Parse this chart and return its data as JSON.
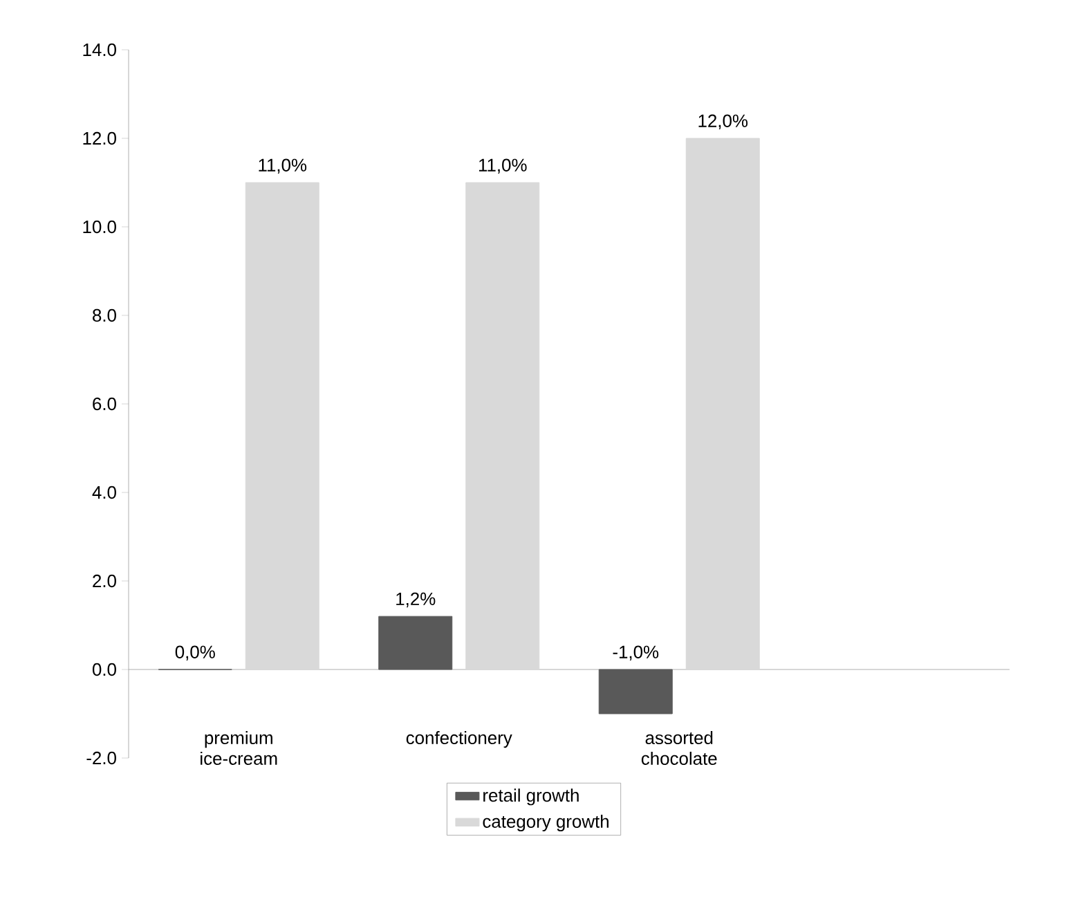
{
  "chart_data": {
    "type": "bar",
    "categories": [
      "premium ice-cream",
      "confectionery",
      "assorted chocolate",
      null
    ],
    "series": [
      {
        "name": "retail growth",
        "color": "#595959",
        "values": [
          0.0,
          1.2,
          -1.0,
          null
        ],
        "value_labels": [
          "0,0%",
          "1,2%",
          "-1,0%",
          null
        ]
      },
      {
        "name": "category growth",
        "color": "#d9d9d9",
        "values": [
          11.0,
          11.0,
          12.0,
          null
        ],
        "value_labels": [
          "11,0%",
          "11,0%",
          "12,0%",
          null
        ]
      }
    ],
    "ylim": [
      -2,
      14
    ],
    "yticks": [
      {
        "value": -2,
        "label": "-2.0"
      },
      {
        "value": 0,
        "label": "0.0"
      },
      {
        "value": 2,
        "label": "2.0"
      },
      {
        "value": 4,
        "label": "4.0"
      },
      {
        "value": 6,
        "label": "6.0"
      },
      {
        "value": 8,
        "label": "8.0"
      },
      {
        "value": 10,
        "label": "10.0"
      },
      {
        "value": 12,
        "label": "12.0"
      },
      {
        "value": 14,
        "label": "14.0"
      }
    ],
    "legend": "bottom"
  }
}
